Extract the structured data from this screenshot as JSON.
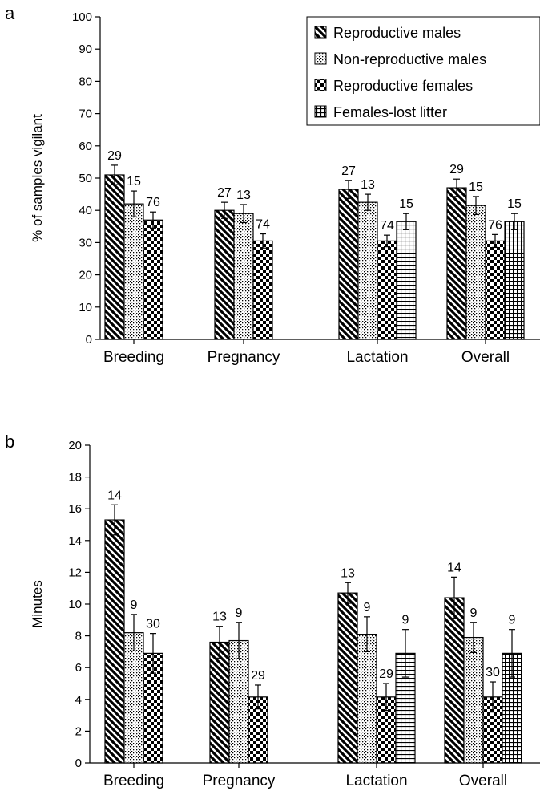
{
  "legend": {
    "entries": [
      {
        "label": "Reproductive males",
        "pattern": "diagonal"
      },
      {
        "label": "Non-reproductive males",
        "pattern": "dots"
      },
      {
        "label": "Reproductive females",
        "pattern": "checker"
      },
      {
        "label": "Females-lost litter",
        "pattern": "grid"
      }
    ],
    "placement": "top-right of panel a"
  },
  "chart_data": [
    {
      "panel_label": "a",
      "type": "bar",
      "ylabel": "% of samples vigilant",
      "xlabel": "",
      "ylim": [
        0,
        100
      ],
      "yticks": [
        0,
        10,
        20,
        30,
        40,
        50,
        60,
        70,
        80,
        90,
        100
      ],
      "grid": false,
      "categories": [
        "Breeding",
        "Pregnancy",
        "Lactation",
        "Overall"
      ],
      "series": [
        {
          "name": "Reproductive males",
          "values": [
            51,
            40,
            46.5,
            47
          ],
          "errors": [
            3,
            2.5,
            2.8,
            2.7
          ],
          "labels": [
            "29",
            "27",
            "27",
            "29"
          ]
        },
        {
          "name": "Non-reproductive males",
          "values": [
            42,
            39,
            42.5,
            41.5
          ],
          "errors": [
            4,
            2.8,
            2.5,
            2.8
          ],
          "labels": [
            "15",
            "13",
            "13",
            "15"
          ]
        },
        {
          "name": "Reproductive females",
          "values": [
            37,
            30.5,
            30.5,
            30.5
          ],
          "errors": [
            2.5,
            2.2,
            1.8,
            2.0
          ],
          "labels": [
            "76",
            "74",
            "74",
            "76"
          ]
        },
        {
          "name": "Females-lost litter",
          "values": [
            null,
            null,
            36.5,
            36.5
          ],
          "errors": [
            null,
            null,
            2.5,
            2.5
          ],
          "labels": [
            "",
            "",
            "15",
            "15"
          ]
        }
      ]
    },
    {
      "panel_label": "b",
      "type": "bar",
      "ylabel": "Minutes",
      "xlabel": "",
      "ylim": [
        0,
        20
      ],
      "yticks": [
        0,
        2,
        4,
        6,
        8,
        10,
        12,
        14,
        16,
        18,
        20
      ],
      "grid": false,
      "categories": [
        "Breeding",
        "Pregnancy",
        "Lactation",
        "Overall"
      ],
      "series": [
        {
          "name": "Reproductive males",
          "values": [
            15.3,
            7.6,
            10.7,
            10.4
          ],
          "errors": [
            0.95,
            1.0,
            0.65,
            1.3
          ],
          "labels": [
            "14",
            "13",
            "13",
            "14"
          ]
        },
        {
          "name": "Non-reproductive males",
          "values": [
            8.2,
            7.7,
            8.1,
            7.9
          ],
          "errors": [
            1.15,
            1.15,
            1.1,
            0.95
          ],
          "labels": [
            "9",
            "9",
            "9",
            "9"
          ]
        },
        {
          "name": "Reproductive females",
          "values": [
            6.9,
            4.15,
            4.15,
            4.15
          ],
          "errors": [
            1.25,
            0.75,
            0.85,
            0.95
          ],
          "labels": [
            "30",
            "29",
            "29",
            "30"
          ]
        },
        {
          "name": "Females-lost litter",
          "values": [
            null,
            null,
            6.9,
            6.9
          ],
          "errors": [
            null,
            null,
            1.5,
            1.5
          ],
          "labels": [
            "",
            "",
            "9",
            "9"
          ]
        }
      ]
    }
  ]
}
